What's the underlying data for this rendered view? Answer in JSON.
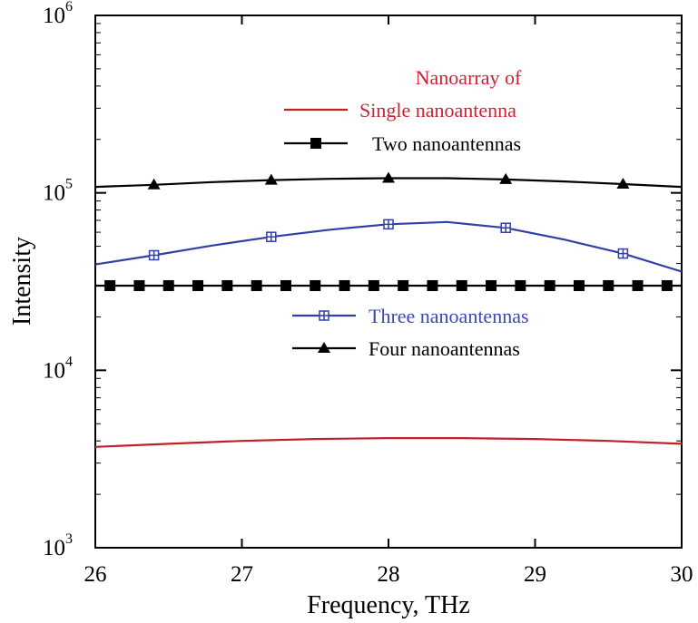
{
  "chart_data": {
    "type": "line",
    "title": "",
    "xlabel": "Frequency, THz",
    "ylabel": "Intensity",
    "xlim": [
      26,
      30
    ],
    "ylim": [
      1000,
      1000000
    ],
    "yscale": "log",
    "x_ticks": [
      "26",
      "27",
      "28",
      "29",
      "30"
    ],
    "y_ticks": [
      {
        "base": "10",
        "exp": "3",
        "value": 1000
      },
      {
        "base": "10",
        "exp": "4",
        "value": 10000
      },
      {
        "base": "10",
        "exp": "5",
        "value": 100000
      },
      {
        "base": "10",
        "exp": "6",
        "value": 1000000
      }
    ],
    "legend_title": "Nanoarray of",
    "legend_title_color": "#cc2233",
    "series": [
      {
        "name": "Single nanoantenna",
        "color": "#c0202a",
        "text_color": "#cc2233",
        "marker": "none",
        "legend_position": "top",
        "x": [
          26.0,
          26.5,
          27.0,
          27.5,
          28.0,
          28.5,
          29.0,
          29.5,
          30.0
        ],
        "y": [
          3700,
          3850,
          4000,
          4100,
          4150,
          4150,
          4100,
          4000,
          3850
        ],
        "markers_x": []
      },
      {
        "name": "Two nanoantennas",
        "color": "#000000",
        "text_color": "#000000",
        "marker": "square",
        "legend_position": "top",
        "x": [
          26.0,
          26.5,
          27.0,
          27.5,
          28.0,
          28.5,
          29.0,
          29.5,
          30.0
        ],
        "y": [
          30000,
          30000,
          30000,
          30000,
          30000,
          30000,
          30000,
          30000,
          30000
        ],
        "markers_x": [
          26.1,
          26.3,
          26.5,
          26.7,
          26.9,
          27.1,
          27.3,
          27.5,
          27.7,
          27.9,
          28.1,
          28.3,
          28.5,
          28.7,
          28.9,
          29.1,
          29.3,
          29.5,
          29.7,
          29.9
        ]
      },
      {
        "name": "Three nanoantennas",
        "color": "#3040a8",
        "text_color": "#3a48b8",
        "marker": "plus-square",
        "legend_position": "middle",
        "x": [
          26.0,
          26.4,
          26.8,
          27.2,
          27.6,
          28.0,
          28.4,
          28.8,
          29.2,
          29.6,
          30.0
        ],
        "y": [
          39500,
          44500,
          50500,
          56500,
          62000,
          66500,
          68500,
          63500,
          54500,
          45500,
          36000
        ],
        "markers_x": [
          26.4,
          27.2,
          28.0,
          28.8,
          29.6
        ]
      },
      {
        "name": "Four nanoantennas",
        "color": "#000000",
        "text_color": "#000000",
        "marker": "triangle",
        "legend_position": "middle",
        "x": [
          26.0,
          26.4,
          26.8,
          27.2,
          27.6,
          28.0,
          28.4,
          28.8,
          29.2,
          29.6,
          30.0
        ],
        "y": [
          108000,
          111000,
          115000,
          118000,
          120000,
          121000,
          121000,
          119000,
          116000,
          112000,
          108000
        ],
        "markers_x": [
          26.4,
          27.2,
          28.0,
          28.8,
          29.6
        ]
      }
    ]
  }
}
